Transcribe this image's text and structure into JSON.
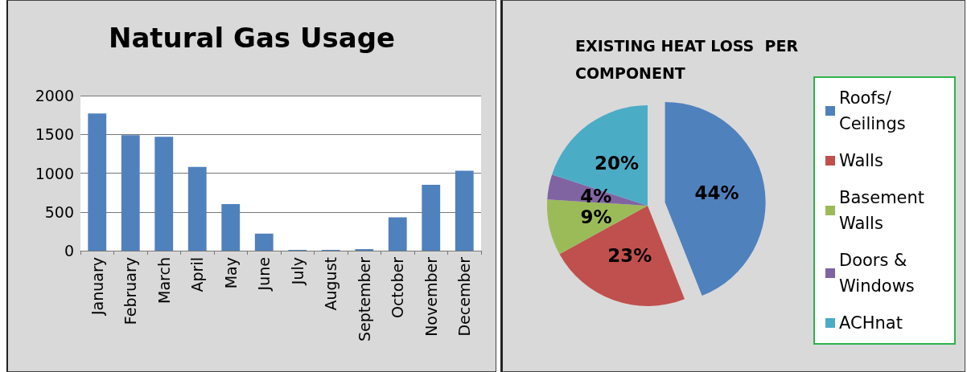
{
  "chart_data": [
    {
      "type": "bar",
      "title": "Natural Gas Usage",
      "categories": [
        "January",
        "February",
        "March",
        "April",
        "May",
        "June",
        "July",
        "August",
        "September",
        "October",
        "November",
        "December"
      ],
      "values": [
        1770,
        1490,
        1470,
        1080,
        600,
        220,
        10,
        10,
        20,
        430,
        850,
        1030
      ],
      "color": "#4f81bd",
      "ylim": [
        0,
        2000
      ],
      "yticks": [
        0,
        500,
        1000,
        1500,
        2000
      ],
      "grid": "y",
      "legend": false
    },
    {
      "type": "pie",
      "title": "EXISTING HEAT LOSS  PER COMPONENT",
      "categories": [
        "Roofs/ Ceilings",
        "Walls",
        "Basement Walls",
        "Doors & Windows",
        "ACHnat"
      ],
      "values": [
        44,
        23,
        9,
        4,
        20
      ],
      "value_labels": [
        "44%",
        "23%",
        "9%",
        "4%",
        "20%"
      ],
      "colors": [
        "#4f81bd",
        "#c0504d",
        "#9bbb59",
        "#8064a2",
        "#4bacc6"
      ],
      "legend": "right"
    }
  ]
}
